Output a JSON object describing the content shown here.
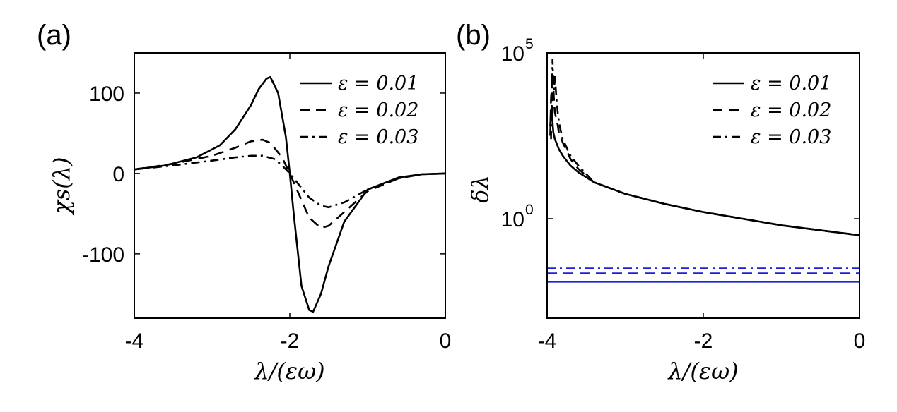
{
  "panels": [
    {
      "label": "(a)",
      "xlabel": "λ/(εω)",
      "ylabel": "χs(λ)",
      "xticks": [
        {
          "v": -4,
          "t": "-4"
        },
        {
          "v": -2,
          "t": "-2"
        },
        {
          "v": 0,
          "t": "0"
        }
      ],
      "yticks": [
        {
          "v": -100,
          "t": "-100"
        },
        {
          "v": 0,
          "t": "0"
        },
        {
          "v": 100,
          "t": "100"
        }
      ],
      "legend": [
        "ε = 0.01",
        "ε = 0.02",
        "ε = 0.03"
      ]
    },
    {
      "label": "(b)",
      "xlabel": "λ/(εω)",
      "ylabel": "δλ",
      "xticks": [
        {
          "v": -4,
          "t": "-4"
        },
        {
          "v": -2,
          "t": "-2"
        },
        {
          "v": 0,
          "t": "0"
        }
      ],
      "yticks": [
        {
          "v": 0,
          "t": "10",
          "sup": "0"
        },
        {
          "v": 5,
          "t": "10",
          "sup": "5"
        }
      ],
      "legend": [
        "ε = 0.01",
        "ε = 0.02",
        "ε = 0.03"
      ]
    }
  ],
  "colors": {
    "black": "#000000",
    "blue": "#1f1fd6"
  },
  "chart_data": [
    {
      "type": "line",
      "panel": "(a)",
      "xlabel": "λ/(εω)",
      "ylabel": "χs(λ)",
      "xlim": [
        -4,
        0
      ],
      "ylim": [
        -180,
        150
      ],
      "legend_position": "top-right",
      "series": [
        {
          "name": "ε = 0.01",
          "style": "solid",
          "x": [
            -4,
            -3.6,
            -3.2,
            -2.9,
            -2.7,
            -2.5,
            -2.4,
            -2.3,
            -2.25,
            -2.15,
            -2.05,
            -2.0,
            -1.95,
            -1.85,
            -1.75,
            -1.7,
            -1.6,
            -1.5,
            -1.3,
            -1.0,
            -0.6,
            -0.3,
            0
          ],
          "y": [
            5,
            10,
            20,
            35,
            55,
            85,
            105,
            118,
            120,
            100,
            45,
            0,
            -50,
            -140,
            -170,
            -172,
            -150,
            -115,
            -60,
            -20,
            -5,
            -1,
            0
          ]
        },
        {
          "name": "ε = 0.02",
          "style": "dashed",
          "x": [
            -4,
            -3.5,
            -3.0,
            -2.7,
            -2.5,
            -2.35,
            -2.25,
            -2.1,
            -2.0,
            -1.9,
            -1.75,
            -1.6,
            -1.5,
            -1.3,
            -1.0,
            -0.6,
            -0.3,
            0
          ],
          "y": [
            5,
            12,
            22,
            32,
            40,
            42,
            38,
            20,
            0,
            -22,
            -55,
            -68,
            -65,
            -48,
            -22,
            -6,
            -1,
            0
          ]
        },
        {
          "name": "ε = 0.03",
          "style": "dash-dot",
          "x": [
            -4,
            -3.5,
            -3.0,
            -2.7,
            -2.5,
            -2.35,
            -2.2,
            -2.1,
            -2.0,
            -1.9,
            -1.75,
            -1.6,
            -1.5,
            -1.3,
            -1.0,
            -0.6,
            -0.3,
            0
          ],
          "y": [
            5,
            10,
            16,
            20,
            22,
            22,
            18,
            10,
            0,
            -12,
            -30,
            -40,
            -42,
            -36,
            -20,
            -6,
            -1,
            0
          ]
        }
      ]
    },
    {
      "type": "line",
      "panel": "(b)",
      "xlabel": "λ/(εω)",
      "ylabel": "δλ",
      "xlim": [
        -4,
        0
      ],
      "ylim_log10": [
        -3,
        5
      ],
      "yscale": "log",
      "legend_position": "top-right",
      "series": [
        {
          "name": "ε = 0.01",
          "style": "solid",
          "color": "black",
          "x": [
            -3.96,
            -3.95,
            -3.94,
            -3.93,
            -3.92,
            -3.91,
            -3.9,
            -3.85,
            -3.8,
            -3.7,
            -3.6,
            -3.4,
            -3.0,
            -2.5,
            -2.0,
            -1.5,
            -1.0,
            -0.5,
            0
          ],
          "log10y": [
            2.8,
            3.2,
            3.4,
            2.9,
            2.6,
            2.5,
            2.4,
            2.1,
            1.9,
            1.6,
            1.4,
            1.1,
            0.75,
            0.45,
            0.2,
            0,
            -0.2,
            -0.35,
            -0.5
          ]
        },
        {
          "name": "ε = 0.02",
          "style": "dashed",
          "color": "black",
          "x": [
            -3.96,
            -3.95,
            -3.93,
            -3.92,
            -3.91,
            -3.9,
            -3.87,
            -3.85,
            -3.8,
            -3.7,
            -3.6,
            -3.5,
            -3.4,
            -3.0,
            -2.5,
            -2.0,
            -1.5,
            -1.0,
            -0.5,
            0
          ],
          "log10y": [
            2.5,
            3.6,
            4.4,
            4.0,
            3.5,
            3.2,
            2.9,
            2.6,
            2.3,
            1.8,
            1.5,
            1.3,
            1.1,
            0.75,
            0.45,
            0.2,
            0,
            -0.2,
            -0.35,
            -0.5
          ]
        },
        {
          "name": "ε = 0.03",
          "style": "dash-dot",
          "color": "black",
          "x": [
            -3.95,
            -3.94,
            -3.93,
            -3.92,
            -3.91,
            -3.9,
            -3.88,
            -3.86,
            -3.84,
            -3.8,
            -3.7,
            -3.6,
            -3.5,
            -3.4,
            -3.0,
            -2.5,
            -2.0,
            -1.5,
            -1.0,
            -0.5,
            0
          ],
          "log10y": [
            2.4,
            3.5,
            4.8,
            4.0,
            3.9,
            4.3,
            3.6,
            3.1,
            2.8,
            2.4,
            1.9,
            1.6,
            1.35,
            1.1,
            0.75,
            0.45,
            0.2,
            0,
            -0.2,
            -0.35,
            -0.5
          ]
        },
        {
          "name": "ε = 0.01",
          "style": "solid",
          "color": "blue",
          "x": [
            -4,
            0
          ],
          "log10y": [
            -1.9,
            -1.9
          ]
        },
        {
          "name": "ε = 0.02",
          "style": "dashed",
          "color": "blue",
          "x": [
            -4,
            0
          ],
          "log10y": [
            -1.65,
            -1.65
          ]
        },
        {
          "name": "ε = 0.03",
          "style": "dash-dot",
          "color": "blue",
          "x": [
            -4,
            0
          ],
          "log10y": [
            -1.5,
            -1.5
          ]
        }
      ]
    }
  ]
}
